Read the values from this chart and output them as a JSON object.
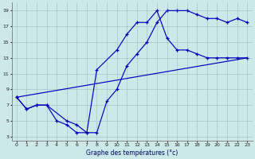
{
  "xlabel": "Graphe des températures (°c)",
  "background_color": "#cce8e8",
  "grid_color": "#aacccc",
  "line_color": "#0000bb",
  "xlim": [
    -0.5,
    23.5
  ],
  "ylim": [
    2.5,
    20
  ],
  "yticks": [
    3,
    5,
    7,
    9,
    11,
    13,
    15,
    17,
    19
  ],
  "xticks": [
    0,
    1,
    2,
    3,
    4,
    5,
    6,
    7,
    8,
    9,
    10,
    11,
    12,
    13,
    14,
    15,
    16,
    17,
    18,
    19,
    20,
    21,
    22,
    23
  ],
  "line1_x": [
    0,
    1,
    2,
    3,
    5,
    6,
    7,
    8,
    9,
    10,
    11,
    12,
    13,
    14,
    15,
    16,
    17,
    18,
    19,
    20,
    21,
    22,
    23
  ],
  "line1_y": [
    8,
    6.5,
    7,
    7,
    5,
    4.5,
    3.5,
    3.5,
    7.5,
    9,
    12,
    13.5,
    15,
    17.5,
    19,
    19,
    19,
    18.5,
    18,
    18,
    17.5,
    18,
    17.5
  ],
  "line2_x": [
    0,
    1,
    2,
    3,
    4,
    5,
    6,
    7,
    8,
    10,
    11,
    12,
    13,
    14,
    15,
    16,
    17,
    18,
    19,
    20,
    21,
    22,
    23
  ],
  "line2_y": [
    8,
    6.5,
    7,
    7,
    5,
    4.5,
    3.5,
    3.5,
    11.5,
    14,
    16,
    17.5,
    17.5,
    19,
    15.5,
    14,
    14,
    13.5,
    13,
    13,
    13,
    13,
    13
  ],
  "line3_x": [
    0,
    23
  ],
  "line3_y": [
    8,
    13
  ]
}
